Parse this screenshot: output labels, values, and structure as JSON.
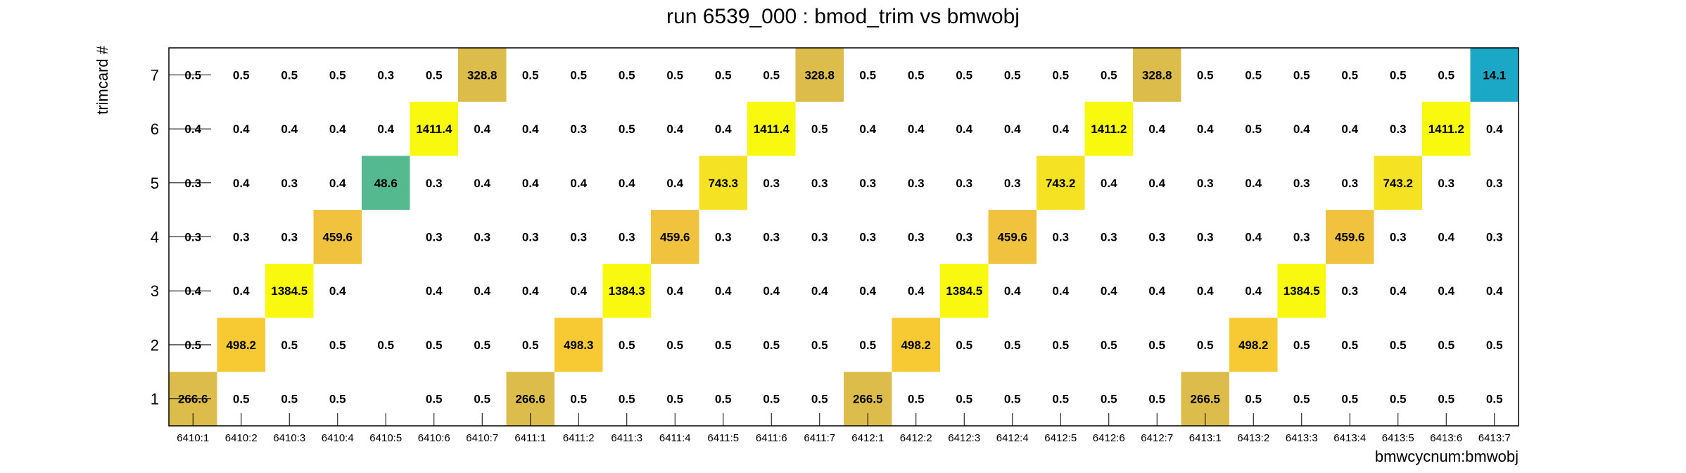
{
  "chart_data": {
    "type": "heatmap",
    "title": "run 6539_000 : bmod_trim vs bmwobj",
    "xlabel": "bmwcycnum:bmwobj",
    "ylabel": "trimcard #",
    "x_categories": [
      "6410:1",
      "6410:2",
      "6410:3",
      "6410:4",
      "6410:5",
      "6410:6",
      "6410:7",
      "6411:1",
      "6411:2",
      "6411:3",
      "6411:4",
      "6411:5",
      "6411:6",
      "6411:7",
      "6412:1",
      "6412:2",
      "6412:3",
      "6412:4",
      "6412:5",
      "6412:6",
      "6412:7",
      "6413:1",
      "6413:2",
      "6413:3",
      "6413:4",
      "6413:5",
      "6413:6",
      "6413:7"
    ],
    "y_categories": [
      "1",
      "2",
      "3",
      "4",
      "5",
      "6",
      "7"
    ],
    "values": [
      [
        "266.6",
        "0.5",
        "0.5",
        "0.5",
        "",
        "0.5",
        "0.5",
        "266.6",
        "0.5",
        "0.5",
        "0.5",
        "0.5",
        "0.5",
        "0.5",
        "266.5",
        "0.5",
        "0.5",
        "0.5",
        "0.5",
        "0.5",
        "0.5",
        "266.5",
        "0.5",
        "0.5",
        "0.5",
        "0.5",
        "0.5",
        "0.5"
      ],
      [
        "0.5",
        "498.2",
        "0.5",
        "0.5",
        "0.5",
        "0.5",
        "0.5",
        "0.5",
        "498.3",
        "0.5",
        "0.5",
        "0.5",
        "0.5",
        "0.5",
        "0.5",
        "498.2",
        "0.5",
        "0.5",
        "0.5",
        "0.5",
        "0.5",
        "0.5",
        "498.2",
        "0.5",
        "0.5",
        "0.5",
        "0.5",
        "0.5"
      ],
      [
        "0.4",
        "0.4",
        "1384.5",
        "0.4",
        "",
        "0.4",
        "0.4",
        "0.4",
        "0.4",
        "1384.3",
        "0.4",
        "0.4",
        "0.4",
        "0.4",
        "0.4",
        "0.4",
        "1384.5",
        "0.4",
        "0.4",
        "0.4",
        "0.4",
        "0.4",
        "0.4",
        "1384.5",
        "0.3",
        "0.4",
        "0.4",
        "0.4"
      ],
      [
        "0.3",
        "0.3",
        "0.3",
        "459.6",
        "",
        "0.3",
        "0.3",
        "0.3",
        "0.3",
        "0.3",
        "459.6",
        "0.3",
        "0.3",
        "0.3",
        "0.3",
        "0.3",
        "0.3",
        "459.6",
        "0.3",
        "0.3",
        "0.3",
        "0.3",
        "0.4",
        "0.3",
        "459.6",
        "0.3",
        "0.4",
        "0.3"
      ],
      [
        "0.3",
        "0.4",
        "0.3",
        "0.4",
        "48.6",
        "0.3",
        "0.4",
        "0.4",
        "0.4",
        "0.4",
        "0.4",
        "743.3",
        "0.3",
        "0.3",
        "0.3",
        "0.3",
        "0.3",
        "0.3",
        "743.2",
        "0.4",
        "0.4",
        "0.3",
        "0.4",
        "0.3",
        "0.3",
        "743.2",
        "0.3",
        "0.3"
      ],
      [
        "0.4",
        "0.4",
        "0.4",
        "0.4",
        "0.4",
        "1411.4",
        "0.4",
        "0.4",
        "0.3",
        "0.5",
        "0.4",
        "0.4",
        "1411.4",
        "0.5",
        "0.4",
        "0.4",
        "0.4",
        "0.4",
        "0.4",
        "1411.2",
        "0.4",
        "0.4",
        "0.5",
        "0.4",
        "0.4",
        "0.3",
        "1411.2",
        "0.4"
      ],
      [
        "0.5",
        "0.5",
        "0.5",
        "0.5",
        "0.3",
        "0.5",
        "328.8",
        "0.5",
        "0.5",
        "0.5",
        "0.5",
        "0.5",
        "0.5",
        "328.8",
        "0.5",
        "0.5",
        "0.5",
        "0.5",
        "0.5",
        "0.5",
        "328.8",
        "0.5",
        "0.5",
        "0.5",
        "0.5",
        "0.5",
        "0.5",
        "14.1"
      ]
    ],
    "cell_colors": {
      "266": "#dcbc4a",
      "328": "#dcbc4a",
      "459": "#f0c23e",
      "498": "#f7c933",
      "743": "#f5e223",
      "1384": "#f9f90f",
      "1411": "#f9f90f",
      "48": "#54b98f",
      "14": "#1aa8c6"
    },
    "grid": false,
    "legend": "none"
  }
}
